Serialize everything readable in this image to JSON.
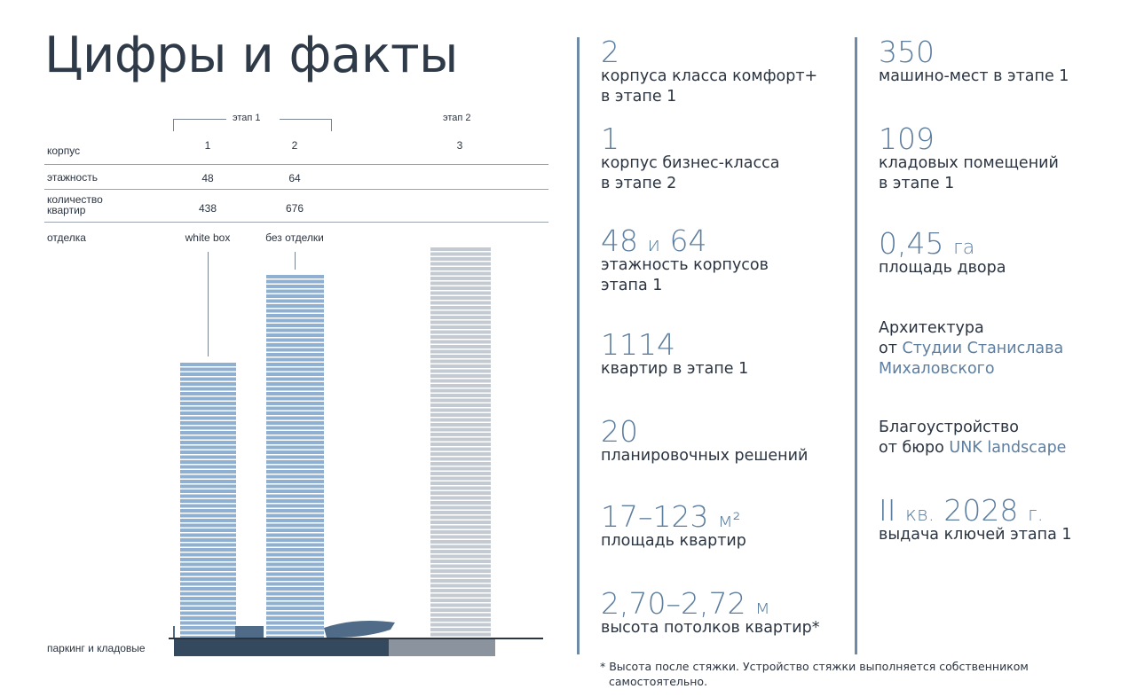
{
  "title": "Цифры и факты",
  "table": {
    "stage1_label": "этап 1",
    "stage2_label": "этап 2",
    "rows": [
      {
        "label": "корпус",
        "values": [
          "1",
          "2",
          "3"
        ]
      },
      {
        "label": "этажность",
        "values": [
          "48",
          "64"
        ]
      },
      {
        "label_line1": "количество",
        "label_line2": "квартир",
        "values": [
          "438",
          "676"
        ]
      },
      {
        "label": "отделка",
        "values": [
          "white box",
          "без отделки"
        ]
      }
    ]
  },
  "parking_label": "паркинг и кладовые",
  "colors": {
    "tower_stage1": "#8fb0d0",
    "tower_stage2": "#c3cad2",
    "accent": "#5d7e9f",
    "parking_stage1": "#34485e",
    "parking_stage2": "#8a939e"
  },
  "facts_left": [
    {
      "value": "2",
      "text1": "корпуса класса комфорт+",
      "text2": "в этапе 1"
    },
    {
      "value": "1",
      "text1": "корпус бизнес-класса",
      "text2": "в этапе 2"
    },
    {
      "value_a": "48",
      "conj": "и",
      "value_b": "64",
      "text1": "этажность корпусов",
      "text2": "этапа 1"
    },
    {
      "value": "1114",
      "text1": "квартир в этапе 1"
    },
    {
      "value": "20",
      "text1": "планировочных решений"
    },
    {
      "value": "17–123",
      "unit": "м²",
      "text1": "площадь квартир"
    },
    {
      "value": "2,70–2,72",
      "unit": "м",
      "text1": "высота потолков квартир*"
    }
  ],
  "facts_right": [
    {
      "value": "350",
      "text1": "машино-мест в этапе 1"
    },
    {
      "value": "109",
      "text1": "кладовых помещений",
      "text2": "в этапе 1"
    },
    {
      "value": "0,45",
      "unit": "га",
      "text1": "площадь двора"
    },
    {
      "head": "Архитектура",
      "prefix": "от",
      "link1": "Студии Станислава",
      "link2": "Михаловского"
    },
    {
      "head": "Благоустройство",
      "prefix": "от бюро",
      "link1": "UNK landscape"
    },
    {
      "value_a": "II",
      "unit_a": "кв.",
      "value_b": "2028",
      "unit_b": "г.",
      "text1": "выдача ключей этапа 1"
    }
  ],
  "footnote_line1": "* Высота после стяжки. Устройство стяжки выполняется собственником",
  "footnote_line2": "самостоятельно."
}
